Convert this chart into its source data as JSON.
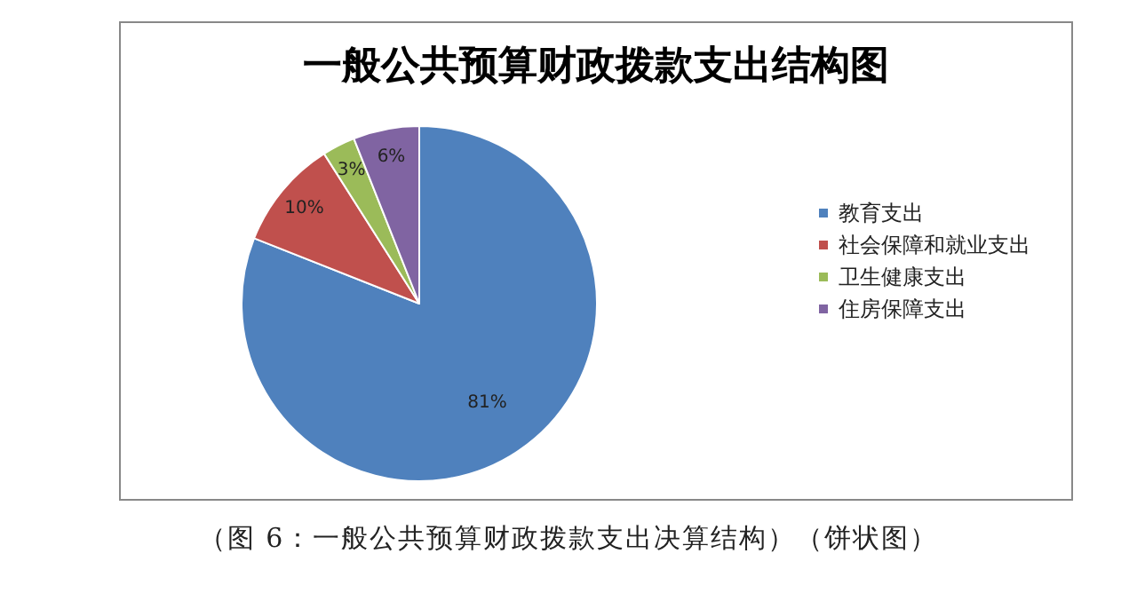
{
  "chart_data": {
    "type": "pie",
    "title": "一般公共预算财政拨款支出结构图",
    "categories": [
      "教育支出",
      "社会保障和就业支出",
      "卫生健康支出",
      "住房保障支出"
    ],
    "values": [
      81,
      10,
      3,
      6
    ],
    "colors": [
      "#4f81bd",
      "#c0504d",
      "#9bbb59",
      "#8064a2"
    ],
    "value_labels": [
      "81%",
      "10%",
      "3%",
      "6%"
    ],
    "legend": "right",
    "annotations": [
      "（图 6：一般公共预算财政拨款支出决算结构）（饼状图）"
    ]
  }
}
